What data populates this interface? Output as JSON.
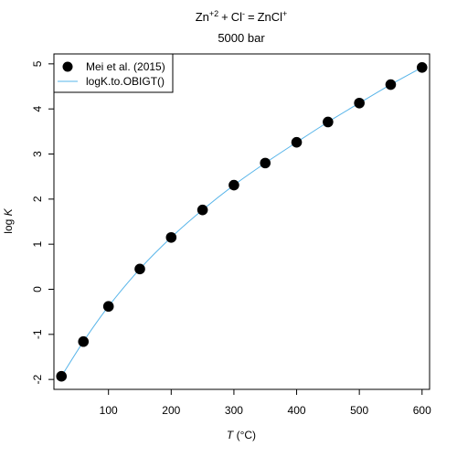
{
  "chart_data": {
    "type": "scatter",
    "title": {
      "lhs_species": [
        {
          "base": "Zn",
          "charge": "+2"
        },
        {
          "base": "Cl",
          "charge": "-"
        }
      ],
      "plus": "+",
      "equals": "=",
      "rhs_species": {
        "base": "ZnCl",
        "charge": "+"
      }
    },
    "subtitle": "5000 bar",
    "xlabel": {
      "symbol": "T",
      "unit": " (°C)"
    },
    "ylabel": {
      "prefix": "log ",
      "symbol": "K"
    },
    "xlim": [
      13,
      612
    ],
    "ylim": [
      -2.22,
      5.22
    ],
    "xticks": [
      100,
      200,
      300,
      400,
      500,
      600
    ],
    "yticks": [
      -2,
      -1,
      0,
      1,
      2,
      3,
      4,
      5
    ],
    "legend_position": "top-left",
    "series": [
      {
        "name": "Mei et al. (2015)",
        "kind": "points",
        "color": "#000000",
        "x": [
          25,
          60,
          100,
          150,
          200,
          250,
          300,
          350,
          400,
          450,
          500,
          550,
          600
        ],
        "y": [
          -1.93,
          -1.16,
          -0.38,
          0.45,
          1.15,
          1.76,
          2.31,
          2.8,
          3.26,
          3.71,
          4.13,
          4.54,
          4.92
        ]
      },
      {
        "name": "logK.to.OBIGT()",
        "kind": "line",
        "color": "#56B4E9",
        "x": [
          25,
          60,
          100,
          150,
          200,
          250,
          300,
          350,
          400,
          450,
          500,
          550,
          600
        ],
        "y": [
          -1.93,
          -1.16,
          -0.38,
          0.45,
          1.15,
          1.76,
          2.31,
          2.8,
          3.26,
          3.71,
          4.13,
          4.54,
          4.92
        ]
      }
    ]
  }
}
